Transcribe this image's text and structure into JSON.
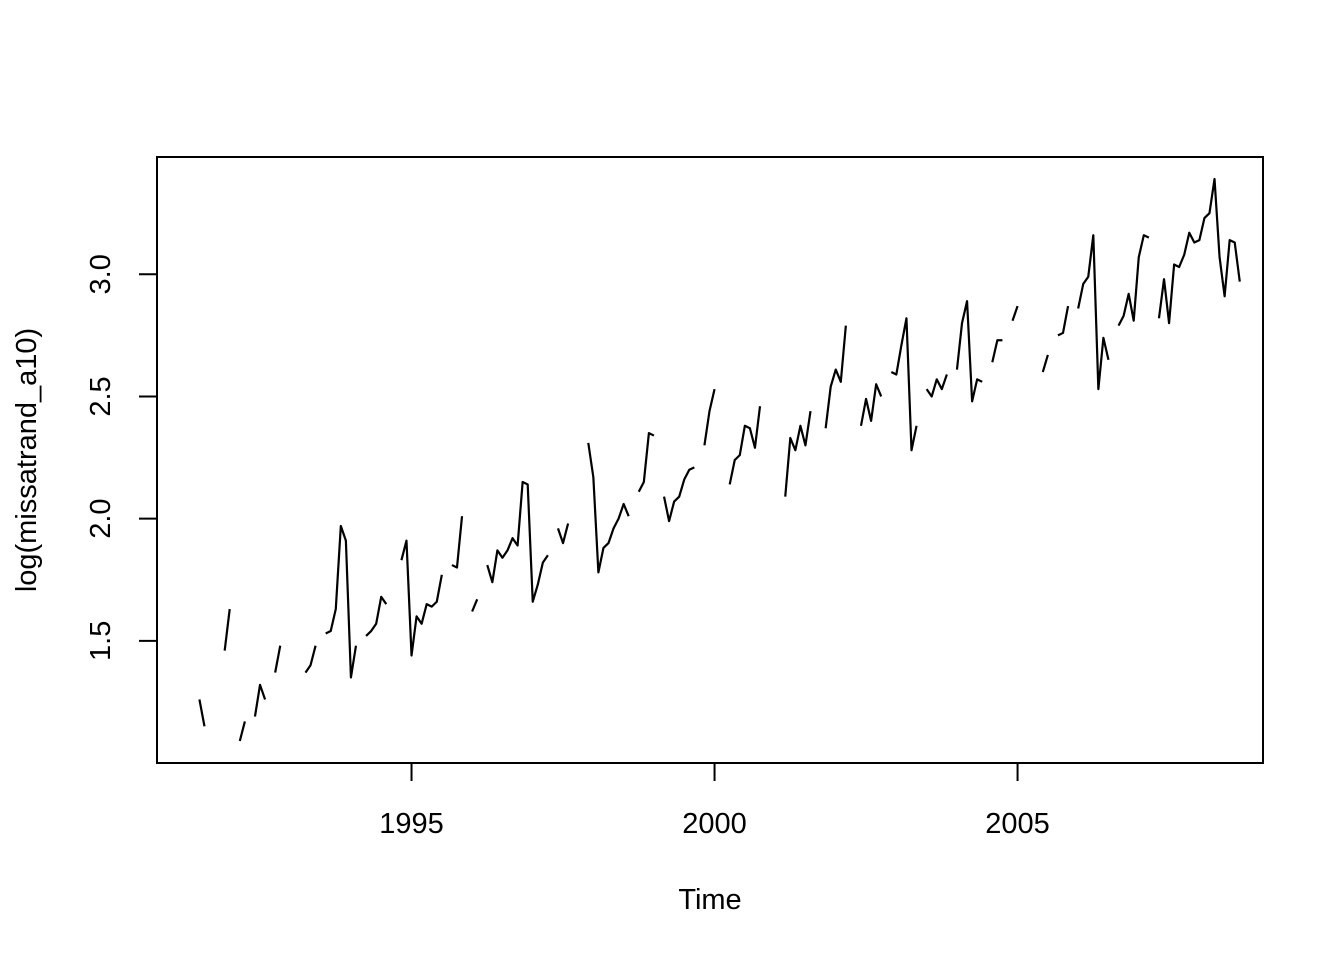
{
  "chart_data": {
    "type": "line",
    "title": "",
    "xlabel": "Time",
    "ylabel": "log(missatrand_a10)",
    "xlim": [
      1990.8,
      2009.05
    ],
    "ylim": [
      1.0,
      3.48
    ],
    "x_ticks": [
      1995,
      2000,
      2005
    ],
    "x_tick_labels": [
      "1995",
      "2000",
      "2005"
    ],
    "y_ticks": [
      1.5,
      2.0,
      2.5,
      3.0
    ],
    "y_tick_labels": [
      "1.5",
      "2.0",
      "2.5",
      "3.0"
    ],
    "grid": false,
    "legend": "none",
    "frequency": 12,
    "start": [
      1991,
      7
    ],
    "series": [
      {
        "values": [
          1.26,
          1.15,
          null,
          null,
          null,
          1.46,
          1.63,
          null,
          1.09,
          1.17,
          null,
          1.19,
          1.32,
          1.26,
          null,
          1.37,
          1.48,
          null,
          null,
          null,
          null,
          1.37,
          1.4,
          1.48,
          null,
          1.53,
          1.54,
          1.63,
          1.97,
          1.91,
          1.35,
          1.48,
          null,
          1.52,
          1.54,
          1.57,
          1.68,
          1.65,
          null,
          null,
          1.83,
          1.91,
          1.44,
          1.6,
          1.57,
          1.65,
          1.64,
          1.66,
          1.77,
          null,
          1.81,
          1.8,
          2.01,
          null,
          1.62,
          1.67,
          null,
          1.81,
          1.74,
          1.87,
          1.84,
          1.87,
          1.92,
          1.89,
          2.15,
          2.14,
          1.66,
          1.73,
          1.82,
          1.85,
          null,
          1.96,
          1.9,
          1.98,
          null,
          null,
          null,
          2.31,
          2.17,
          1.78,
          1.88,
          1.9,
          1.96,
          2.0,
          2.06,
          2.01,
          null,
          2.11,
          2.15,
          2.35,
          2.34,
          null,
          2.09,
          1.99,
          2.07,
          2.09,
          2.16,
          2.2,
          2.21,
          null,
          2.3,
          2.44,
          2.53,
          null,
          null,
          2.14,
          2.24,
          2.26,
          2.38,
          2.37,
          2.29,
          2.46,
          null,
          null,
          null,
          null,
          2.09,
          2.33,
          2.28,
          2.38,
          2.3,
          2.44,
          null,
          null,
          2.37,
          2.54,
          2.61,
          2.56,
          2.79,
          null,
          null,
          2.38,
          2.49,
          2.4,
          2.55,
          2.5,
          null,
          2.6,
          2.59,
          2.71,
          2.82,
          2.28,
          2.38,
          null,
          2.53,
          2.5,
          2.57,
          2.53,
          2.59,
          null,
          2.61,
          2.8,
          2.89,
          2.48,
          2.57,
          2.56,
          null,
          2.64,
          2.73,
          2.73,
          null,
          2.81,
          2.87,
          null,
          null,
          null,
          null,
          2.6,
          2.67,
          null,
          2.75,
          2.76,
          2.87,
          null,
          2.86,
          2.96,
          2.99,
          3.16,
          2.53,
          2.74,
          2.65,
          null,
          2.79,
          2.83,
          2.92,
          2.81,
          3.07,
          3.16,
          3.15,
          null,
          2.82,
          2.98,
          2.8,
          3.04,
          3.03,
          3.08,
          3.17,
          3.13,
          3.14,
          3.23,
          3.25,
          3.39,
          3.07,
          2.91,
          3.14,
          3.13,
          2.97
        ]
      }
    ]
  }
}
